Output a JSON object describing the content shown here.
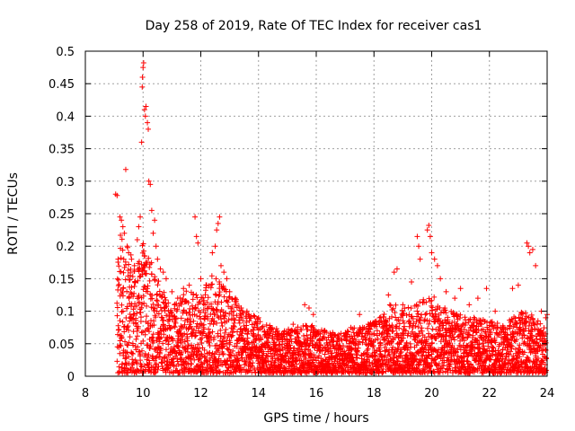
{
  "chart_data": {
    "type": "scatter",
    "title": "Day 258 of 2019, Rate Of TEC Index for receiver cas1",
    "xlabel": "GPS time / hours",
    "ylabel": "ROTI / TECUs",
    "xlim": [
      8,
      24
    ],
    "ylim": [
      0,
      0.5
    ],
    "x_ticks": [
      8,
      10,
      12,
      14,
      16,
      18,
      20,
      22,
      24
    ],
    "y_ticks": [
      0,
      0.05,
      0.1,
      0.15,
      0.2,
      0.25,
      0.3,
      0.35,
      0.4,
      0.45,
      0.5
    ],
    "x_tick_labels": [
      "8",
      "10",
      "12",
      "14",
      "16",
      "18",
      "20",
      "22",
      "24"
    ],
    "y_tick_labels": [
      "0",
      "0.05",
      "0.1",
      "0.15",
      "0.2",
      "0.25",
      "0.3",
      "0.35",
      "0.4",
      "0.45",
      "0.5"
    ],
    "grid": true,
    "marker": "+",
    "color": "#ff0000",
    "series": [
      {
        "name": "ROTI",
        "points": [
          [
            9.05,
            0.28
          ],
          [
            9.1,
            0.278
          ],
          [
            9.2,
            0.245
          ],
          [
            9.25,
            0.24
          ],
          [
            9.3,
            0.23
          ],
          [
            9.35,
            0.22
          ],
          [
            9.4,
            0.318
          ],
          [
            9.45,
            0.2
          ],
          [
            9.5,
            0.19
          ],
          [
            9.6,
            0.18
          ],
          [
            9.7,
            0.17
          ],
          [
            9.8,
            0.21
          ],
          [
            9.85,
            0.23
          ],
          [
            9.9,
            0.245
          ],
          [
            9.95,
            0.36
          ],
          [
            9.97,
            0.445
          ],
          [
            9.98,
            0.46
          ],
          [
            10.0,
            0.475
          ],
          [
            10.02,
            0.482
          ],
          [
            10.05,
            0.41
          ],
          [
            10.08,
            0.4
          ],
          [
            10.1,
            0.415
          ],
          [
            10.15,
            0.39
          ],
          [
            10.18,
            0.38
          ],
          [
            10.2,
            0.3
          ],
          [
            10.25,
            0.295
          ],
          [
            10.3,
            0.255
          ],
          [
            10.35,
            0.22
          ],
          [
            10.4,
            0.24
          ],
          [
            10.45,
            0.2
          ],
          [
            10.5,
            0.18
          ],
          [
            10.6,
            0.165
          ],
          [
            10.7,
            0.16
          ],
          [
            10.8,
            0.15
          ],
          [
            11.0,
            0.13
          ],
          [
            11.2,
            0.12
          ],
          [
            11.4,
            0.135
          ],
          [
            11.6,
            0.14
          ],
          [
            11.8,
            0.245
          ],
          [
            11.85,
            0.215
          ],
          [
            11.9,
            0.205
          ],
          [
            12.0,
            0.15
          ],
          [
            12.2,
            0.14
          ],
          [
            12.4,
            0.19
          ],
          [
            12.5,
            0.2
          ],
          [
            12.55,
            0.225
          ],
          [
            12.6,
            0.235
          ],
          [
            12.65,
            0.245
          ],
          [
            12.7,
            0.17
          ],
          [
            12.8,
            0.16
          ],
          [
            12.9,
            0.15
          ],
          [
            13.0,
            0.13
          ],
          [
            13.2,
            0.12
          ],
          [
            13.4,
            0.105
          ],
          [
            13.6,
            0.1
          ],
          [
            14.0,
            0.09
          ],
          [
            14.4,
            0.075
          ],
          [
            14.8,
            0.065
          ],
          [
            15.2,
            0.08
          ],
          [
            15.6,
            0.11
          ],
          [
            15.75,
            0.105
          ],
          [
            15.9,
            0.095
          ],
          [
            16.3,
            0.07
          ],
          [
            16.8,
            0.055
          ],
          [
            17.2,
            0.075
          ],
          [
            17.5,
            0.095
          ],
          [
            17.8,
            0.08
          ],
          [
            18.2,
            0.09
          ],
          [
            18.5,
            0.125
          ],
          [
            18.7,
            0.16
          ],
          [
            18.8,
            0.165
          ],
          [
            19.0,
            0.11
          ],
          [
            19.3,
            0.145
          ],
          [
            19.5,
            0.215
          ],
          [
            19.55,
            0.2
          ],
          [
            19.6,
            0.18
          ],
          [
            19.85,
            0.225
          ],
          [
            19.9,
            0.232
          ],
          [
            19.95,
            0.215
          ],
          [
            20.0,
            0.19
          ],
          [
            20.1,
            0.18
          ],
          [
            20.2,
            0.17
          ],
          [
            20.3,
            0.15
          ],
          [
            20.5,
            0.13
          ],
          [
            20.8,
            0.12
          ],
          [
            21.0,
            0.135
          ],
          [
            21.3,
            0.11
          ],
          [
            21.6,
            0.12
          ],
          [
            21.9,
            0.135
          ],
          [
            22.2,
            0.1
          ],
          [
            22.5,
            0.075
          ],
          [
            22.8,
            0.135
          ],
          [
            23.0,
            0.14
          ],
          [
            23.3,
            0.205
          ],
          [
            23.35,
            0.2
          ],
          [
            23.4,
            0.19
          ],
          [
            23.5,
            0.195
          ],
          [
            23.6,
            0.17
          ],
          [
            23.8,
            0.1
          ],
          [
            23.95,
            0.09
          ],
          [
            24.0,
            0.095
          ]
        ],
        "envelope": [
          [
            9.0,
            0.16
          ],
          [
            9.2,
            0.22
          ],
          [
            9.5,
            0.19
          ],
          [
            9.8,
            0.17
          ],
          [
            10.0,
            0.2
          ],
          [
            10.3,
            0.17
          ],
          [
            10.6,
            0.14
          ],
          [
            11.0,
            0.1
          ],
          [
            11.3,
            0.12
          ],
          [
            11.6,
            0.13
          ],
          [
            12.0,
            0.12
          ],
          [
            12.3,
            0.15
          ],
          [
            12.6,
            0.155
          ],
          [
            12.9,
            0.13
          ],
          [
            13.3,
            0.11
          ],
          [
            13.8,
            0.09
          ],
          [
            14.3,
            0.075
          ],
          [
            14.8,
            0.065
          ],
          [
            15.3,
            0.07
          ],
          [
            15.8,
            0.075
          ],
          [
            16.3,
            0.065
          ],
          [
            16.8,
            0.06
          ],
          [
            17.3,
            0.07
          ],
          [
            17.8,
            0.075
          ],
          [
            18.2,
            0.085
          ],
          [
            18.6,
            0.11
          ],
          [
            19.0,
            0.1
          ],
          [
            19.5,
            0.11
          ],
          [
            20.0,
            0.12
          ],
          [
            20.5,
            0.1
          ],
          [
            21.0,
            0.09
          ],
          [
            21.5,
            0.085
          ],
          [
            22.0,
            0.08
          ],
          [
            22.5,
            0.075
          ],
          [
            23.0,
            0.095
          ],
          [
            23.5,
            0.09
          ],
          [
            24.0,
            0.07
          ]
        ]
      }
    ]
  }
}
